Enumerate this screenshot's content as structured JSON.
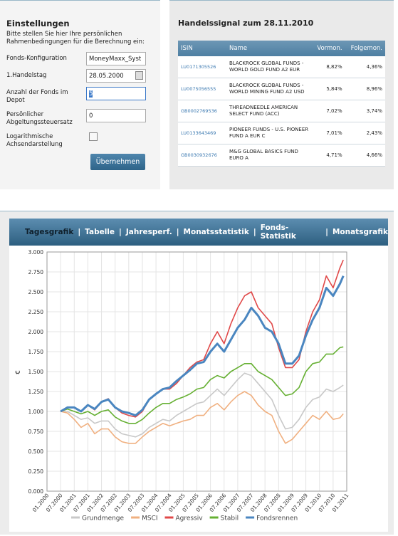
{
  "settings": {
    "title": "Einstellungen",
    "intro": "Bitte stellen Sie hier Ihre persönlichen Rahmenbedingungen für die Berechnung ein:",
    "fields": [
      {
        "label": "Fonds-Konfiguration",
        "value": "MoneyMaxx_Syst"
      },
      {
        "label": "1.Handelstag",
        "value": "28.05.2000"
      },
      {
        "label": "Anzahl der Fonds im Depot",
        "value": "5"
      },
      {
        "label": "Persönlicher Abgeltungssteuersatz",
        "value": "0"
      }
    ],
    "checkbox_label": "Logarithmische Achsendarstellung",
    "button": "Übernehmen"
  },
  "signal": {
    "title": "Handelssignal zum 28.11.2010",
    "columns": [
      "ISIN",
      "Name",
      "Vormon.",
      "Folgemon."
    ],
    "rows": [
      [
        "LU0171305526",
        "BLACKROCK GLOBAL FUNDS - WORLD GOLD FUND A2 EUR",
        "8,82%",
        "4,36%"
      ],
      [
        "LU0075056555",
        "BLACKROCK GLOBAL FUNDS - WORLD MINING FUND A2 USD",
        "5,84%",
        "8,96%"
      ],
      [
        "GB0002769536",
        "THREADNEEDLE AMERICAN SELECT FUND (ACC)",
        "7,02%",
        "3,74%"
      ],
      [
        "LU0133643469",
        "PIONEER FUNDS - U.S. PIONEER FUND A EUR C",
        "7,01%",
        "2,43%"
      ],
      [
        "GB0030932676",
        "M&G GLOBAL BASICS FUND EURO A",
        "4,71%",
        "4,66%"
      ]
    ]
  },
  "tabs": [
    "Tagesgrafik",
    "Tabelle",
    "Jahresperf.",
    "Monatsstatistik",
    "Fonds-Statistik",
    "Monatsgrafik"
  ],
  "chart_data": {
    "type": "line",
    "y_label": "€",
    "x": [
      2000.5,
      2000.75,
      2001,
      2001.25,
      2001.5,
      2001.75,
      2002,
      2002.25,
      2002.5,
      2002.75,
      2003,
      2003.25,
      2003.5,
      2003.75,
      2004,
      2004.25,
      2004.5,
      2004.75,
      2005,
      2005.25,
      2005.5,
      2005.75,
      2006,
      2006.25,
      2006.5,
      2006.75,
      2007,
      2007.25,
      2007.5,
      2007.75,
      2008,
      2008.25,
      2008.5,
      2008.75,
      2009,
      2009.25,
      2009.5,
      2009.75,
      2010,
      2010.25,
      2010.5,
      2010.75,
      2010.875
    ],
    "xlim": [
      2000,
      2011
    ],
    "xticks": [
      {
        "value": 2000,
        "label": "01.2000"
      },
      {
        "value": 2000.5,
        "label": "07.2000"
      },
      {
        "value": 2001,
        "label": "01.2001"
      },
      {
        "value": 2001.5,
        "label": "07.2001"
      },
      {
        "value": 2002,
        "label": "01.2002"
      },
      {
        "value": 2002.5,
        "label": "07.2002"
      },
      {
        "value": 2003,
        "label": "01.2003"
      },
      {
        "value": 2003.5,
        "label": "07.2003"
      },
      {
        "value": 2004,
        "label": "01.2004"
      },
      {
        "value": 2004.5,
        "label": "07.2004"
      },
      {
        "value": 2005,
        "label": "01.2005"
      },
      {
        "value": 2005.5,
        "label": "07.2005"
      },
      {
        "value": 2006,
        "label": "01.2006"
      },
      {
        "value": 2006.5,
        "label": "07.2006"
      },
      {
        "value": 2007,
        "label": "01.2007"
      },
      {
        "value": 2007.5,
        "label": "07.2007"
      },
      {
        "value": 2008,
        "label": "01.2008"
      },
      {
        "value": 2008.5,
        "label": "07.2008"
      },
      {
        "value": 2009,
        "label": "01.2009"
      },
      {
        "value": 2009.5,
        "label": "07.2009"
      },
      {
        "value": 2010,
        "label": "01.2010"
      },
      {
        "value": 2010.5,
        "label": "07.2010"
      },
      {
        "value": 2011,
        "label": "01.2011"
      }
    ],
    "ylim": [
      0,
      3
    ],
    "yticks": [
      {
        "value": 0,
        "label": "0.000"
      },
      {
        "value": 0.25,
        "label": "0.250"
      },
      {
        "value": 0.5,
        "label": "0.500"
      },
      {
        "value": 0.75,
        "label": "0.750"
      },
      {
        "value": 1,
        "label": "1.000"
      },
      {
        "value": 1.25,
        "label": "1.250"
      },
      {
        "value": 1.5,
        "label": "1.500"
      },
      {
        "value": 1.75,
        "label": "1.750"
      },
      {
        "value": 2,
        "label": "2.000"
      },
      {
        "value": 2.25,
        "label": "2.250"
      },
      {
        "value": 2.5,
        "label": "2.500"
      },
      {
        "value": 2.75,
        "label": "2.750"
      },
      {
        "value": 3,
        "label": "3.000"
      }
    ],
    "grid": true,
    "legend": "bottom",
    "series": [
      {
        "name": "Grundmenge",
        "color": "#c8c8c8",
        "values": [
          1.0,
          1.0,
          0.95,
          0.9,
          0.92,
          0.85,
          0.88,
          0.88,
          0.78,
          0.72,
          0.7,
          0.68,
          0.72,
          0.8,
          0.85,
          0.9,
          0.88,
          0.95,
          1.0,
          1.05,
          1.1,
          1.12,
          1.2,
          1.28,
          1.2,
          1.3,
          1.4,
          1.48,
          1.45,
          1.35,
          1.25,
          1.15,
          0.95,
          0.78,
          0.8,
          0.9,
          1.05,
          1.15,
          1.18,
          1.28,
          1.25,
          1.3,
          1.33
        ]
      },
      {
        "name": "MSCI",
        "color": "#f0b080",
        "values": [
          1.0,
          0.98,
          0.9,
          0.8,
          0.85,
          0.72,
          0.78,
          0.78,
          0.68,
          0.62,
          0.6,
          0.6,
          0.68,
          0.75,
          0.8,
          0.85,
          0.82,
          0.85,
          0.88,
          0.9,
          0.95,
          0.95,
          1.05,
          1.1,
          1.02,
          1.12,
          1.2,
          1.25,
          1.2,
          1.08,
          1.0,
          0.95,
          0.75,
          0.6,
          0.65,
          0.75,
          0.85,
          0.95,
          0.9,
          1.0,
          0.9,
          0.92,
          0.97
        ]
      },
      {
        "name": "Agressiv",
        "color": "#e04848",
        "values": [
          1.0,
          1.05,
          1.05,
          1.0,
          1.08,
          1.02,
          1.12,
          1.16,
          1.05,
          0.98,
          0.95,
          0.93,
          1.0,
          1.15,
          1.22,
          1.28,
          1.28,
          1.35,
          1.45,
          1.55,
          1.62,
          1.65,
          1.85,
          2.0,
          1.85,
          2.1,
          2.3,
          2.45,
          2.5,
          2.3,
          2.2,
          2.1,
          1.8,
          1.55,
          1.55,
          1.65,
          2.0,
          2.25,
          2.4,
          2.7,
          2.55,
          2.8,
          2.9
        ]
      },
      {
        "name": "Stabil",
        "color": "#66b033",
        "values": [
          1.0,
          1.03,
          1.0,
          0.97,
          1.0,
          0.95,
          1.0,
          1.02,
          0.93,
          0.88,
          0.85,
          0.85,
          0.9,
          0.98,
          1.05,
          1.1,
          1.1,
          1.15,
          1.18,
          1.22,
          1.28,
          1.3,
          1.4,
          1.45,
          1.42,
          1.5,
          1.55,
          1.6,
          1.6,
          1.5,
          1.45,
          1.4,
          1.3,
          1.2,
          1.22,
          1.3,
          1.5,
          1.6,
          1.62,
          1.72,
          1.72,
          1.8,
          1.81
        ]
      },
      {
        "name": "Fondsrennen",
        "color": "#4a86c0",
        "values": [
          1.0,
          1.05,
          1.05,
          1.0,
          1.08,
          1.03,
          1.12,
          1.15,
          1.05,
          1.0,
          0.98,
          0.95,
          1.02,
          1.15,
          1.22,
          1.28,
          1.3,
          1.38,
          1.45,
          1.52,
          1.6,
          1.62,
          1.75,
          1.85,
          1.75,
          1.9,
          2.05,
          2.15,
          2.3,
          2.2,
          2.05,
          2.0,
          1.85,
          1.6,
          1.6,
          1.7,
          1.95,
          2.15,
          2.3,
          2.55,
          2.45,
          2.6,
          2.7
        ]
      }
    ]
  }
}
